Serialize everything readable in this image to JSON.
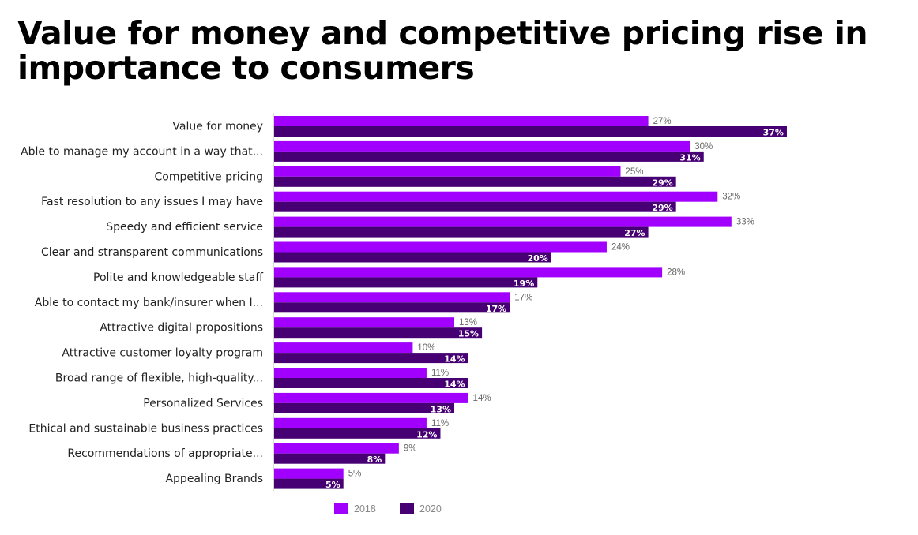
{
  "chart_data": {
    "type": "bar",
    "orientation": "horizontal",
    "title": "Value for money and competitive pricing rise in importance to consumers",
    "xlabel": "",
    "ylabel": "",
    "xlim": [
      0,
      37
    ],
    "grid": false,
    "legend_position": "bottom",
    "value_suffix": "%",
    "categories": [
      "Value for money",
      "Able to manage my account in a way that...",
      "Competitive pricing",
      "Fast resolution to any issues I may have",
      "Speedy and efficient service",
      "Clear and stransparent communications",
      "Polite and knowledgeable staff",
      "Able to contact my bank/insurer when I...",
      "Attractive digital propositions",
      "Attractive customer loyalty program",
      "Broad range of flexible, high-quality...",
      "Personalized Services",
      "Ethical and sustainable business practices",
      "Recommendations of appropriate...",
      "Appealing Brands"
    ],
    "series": [
      {
        "name": "2018",
        "color": "#a100ff",
        "values": [
          27,
          30,
          25,
          32,
          33,
          24,
          28,
          17,
          13,
          10,
          11,
          14,
          11,
          9,
          5
        ]
      },
      {
        "name": "2020",
        "color": "#460073",
        "values": [
          37,
          31,
          29,
          29,
          27,
          20,
          19,
          17,
          15,
          14,
          14,
          13,
          12,
          8,
          5
        ]
      }
    ]
  }
}
